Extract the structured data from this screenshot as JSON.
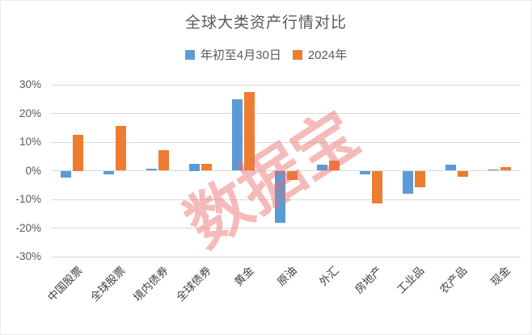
{
  "title": "全球大类资产行情对比",
  "watermark": {
    "text": "数据宝",
    "color": "#E96B6B"
  },
  "legend": {
    "items": [
      {
        "label": "年初至4月30日",
        "color": "#5B9BD5"
      },
      {
        "label": "2024年",
        "color": "#ED7D31"
      }
    ]
  },
  "colors": {
    "series1": "#5B9BD5",
    "series2": "#ED7D31",
    "gridline": "#D9D9D9",
    "axis_text": "#595959",
    "title_text": "#595959",
    "watermark": "#E96B6B"
  },
  "chart_data": {
    "type": "bar",
    "title": "全球大类资产行情对比",
    "categories": [
      "中国股票",
      "全球股票",
      "境内债券",
      "全球债券",
      "黄金",
      "原油",
      "外汇",
      "房地产",
      "工业品",
      "农产品",
      "现金"
    ],
    "series": [
      {
        "name": "年初至4月30日",
        "color": "#5B9BD5",
        "values": [
          -2.5,
          -1.3,
          0.6,
          2.5,
          24.9,
          -18.3,
          2.2,
          -1.2,
          -8.0,
          2.2,
          0.4
        ]
      },
      {
        "name": "2024年",
        "color": "#ED7D31",
        "values": [
          12.5,
          15.7,
          7.3,
          2.4,
          27.4,
          -3.2,
          3.6,
          -11.5,
          -5.9,
          -2.0,
          1.3
        ]
      }
    ],
    "value_unit": "%",
    "ylim": [
      -30,
      30
    ],
    "ytick_step": 10,
    "yticks": [
      "30%",
      "20%",
      "10%",
      "0%",
      "-10%",
      "-20%",
      "-30%"
    ],
    "grid": true,
    "legend_position": "top",
    "xlabel": "",
    "ylabel": ""
  }
}
